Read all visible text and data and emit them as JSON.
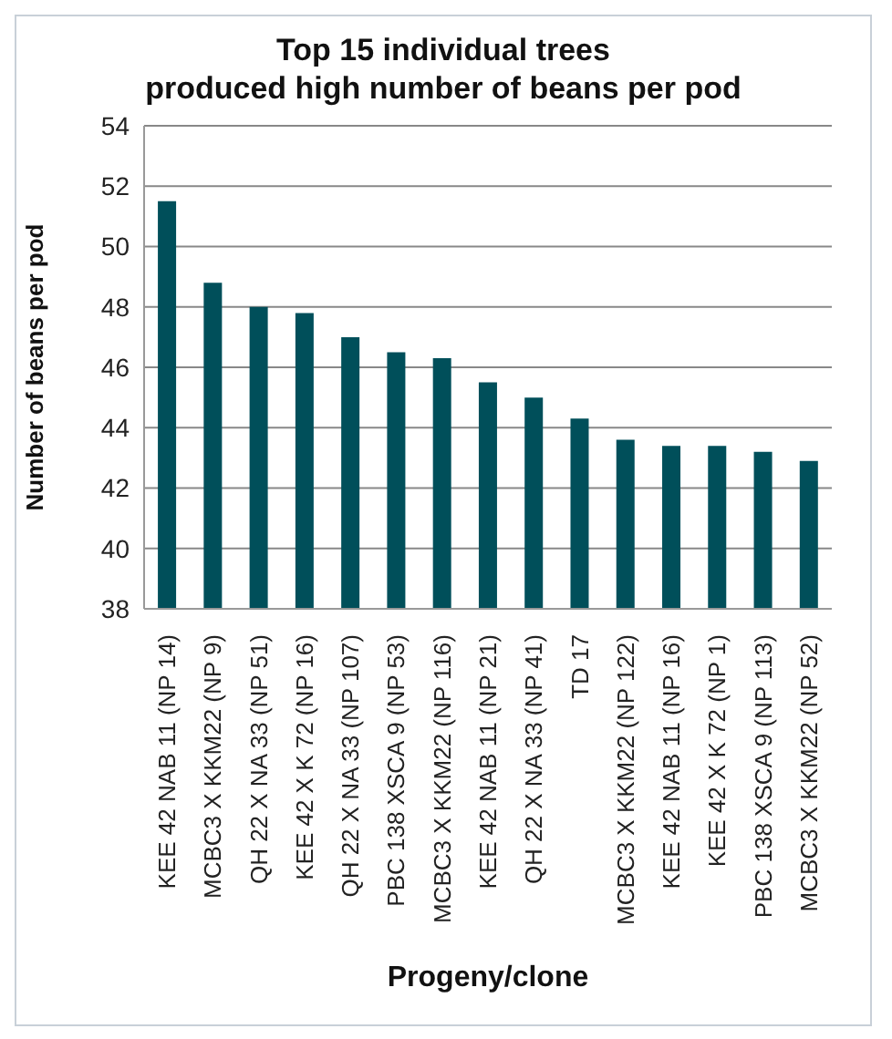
{
  "chart_data": {
    "type": "bar",
    "title": "Top 15 individual trees\nproduced high number of beans per pod",
    "xlabel": "Progeny/clone",
    "ylabel": "Number of beans per pod",
    "categories": [
      "KEE 42 NAB 11 (NP 14)",
      "MCBC3 X KKM22 (NP 9)",
      "QH 22 X NA 33 (NP 51)",
      "KEE 42 X K 72 (NP 16)",
      "QH 22 X NA 33 (NP 107)",
      "PBC 138 XSCA 9 (NP 53)",
      "MCBC3 X KKM22 (NP 116)",
      "KEE 42 NAB 11 (NP 21)",
      "QH 22 X NA 33 (NP 41)",
      "TD 17",
      "MCBC3 X KKM22 (NP 122)",
      "KEE 42 NAB 11 (NP 16)",
      "KEE 42 X K 72 (NP 1)",
      "PBC 138 XSCA 9 (NP 113)",
      "MCBC3 X KKM22 (NP 52)"
    ],
    "values": [
      51.5,
      48.8,
      48.0,
      47.8,
      47.0,
      46.5,
      46.3,
      45.5,
      45.0,
      44.3,
      43.6,
      43.4,
      43.4,
      43.2,
      42.9
    ],
    "color": "#004f5a",
    "ylim": [
      38,
      54
    ],
    "yticks": [
      38,
      40,
      42,
      44,
      46,
      48,
      50,
      52,
      54
    ],
    "grid": "y"
  }
}
